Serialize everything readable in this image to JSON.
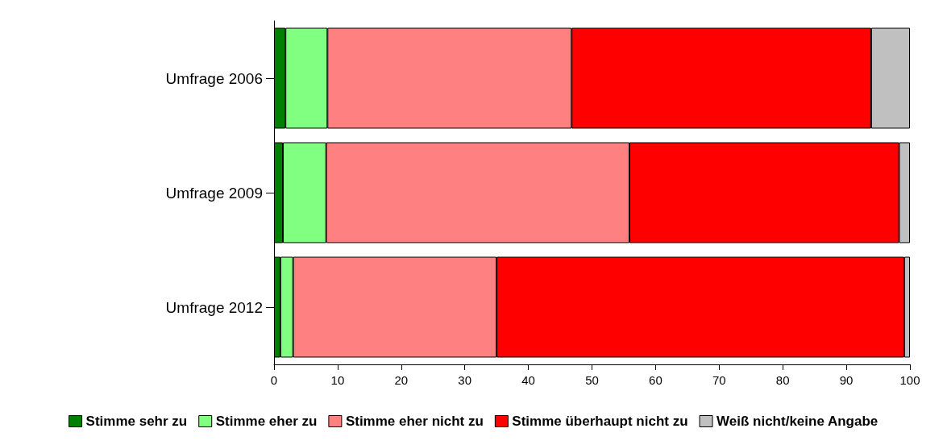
{
  "chart_data": {
    "type": "bar",
    "orientation": "horizontal",
    "stacked": true,
    "categories": [
      "Umfrage 2006",
      "Umfrage 2009",
      "Umfrage 2012"
    ],
    "series": [
      {
        "name": "Stimme sehr zu",
        "color": "#008000",
        "values": [
          1.8,
          1.4,
          1.0
        ]
      },
      {
        "name": "Stimme eher zu",
        "color": "#80ff80",
        "values": [
          6.6,
          6.8,
          2.0
        ]
      },
      {
        "name": "Stimme eher nicht zu",
        "color": "#ff8080",
        "values": [
          38.4,
          47.7,
          32.0
        ]
      },
      {
        "name": "Stimme überhaupt nicht zu",
        "color": "#ff0000",
        "values": [
          47.1,
          42.4,
          64.1
        ]
      },
      {
        "name": "Weiß nicht/keine Angabe",
        "color": "#c0c0c0",
        "values": [
          6.1,
          1.7,
          0.9
        ]
      }
    ],
    "xlim": [
      0,
      100
    ],
    "xticks": [
      0,
      10,
      20,
      30,
      40,
      50,
      60,
      70,
      80,
      90,
      100
    ],
    "grid": false,
    "legend": "bottom"
  }
}
